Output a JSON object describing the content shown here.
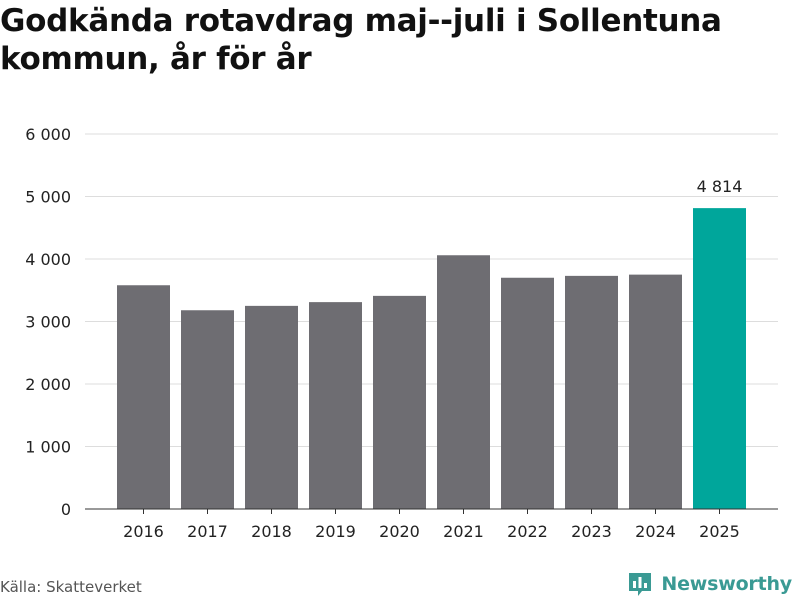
{
  "chart_data": {
    "type": "bar",
    "title": "Godkända rotavdrag maj--juli i Sollentuna kommun, år för år",
    "categories": [
      "2016",
      "2017",
      "2018",
      "2019",
      "2020",
      "2021",
      "2022",
      "2023",
      "2024",
      "2025"
    ],
    "values": [
      3580,
      3180,
      3250,
      3310,
      3410,
      4060,
      3700,
      3730,
      3750,
      4814
    ],
    "ylim": [
      0,
      6000
    ],
    "yticks": [
      0,
      1000,
      2000,
      3000,
      4000,
      5000,
      6000
    ],
    "ytick_labels": [
      "0",
      "1 000",
      "2 000",
      "3 000",
      "4 000",
      "5 000",
      "6 000"
    ],
    "xlabel": "",
    "ylabel": "",
    "grid": true,
    "colors": {
      "default_bar": "#6e6d72",
      "highlight_bar": "#00a69b",
      "grid": "#dddddd",
      "axis": "#333333"
    },
    "highlight_index": 9,
    "data_labels": [
      {
        "index": 9,
        "text": "4 814"
      }
    ]
  },
  "footer": {
    "source": "Källa: Skatteverket",
    "brand": "Newsworthy",
    "brand_icon": "newsworthy-logo-icon",
    "brand_color": "#3a9a94"
  }
}
